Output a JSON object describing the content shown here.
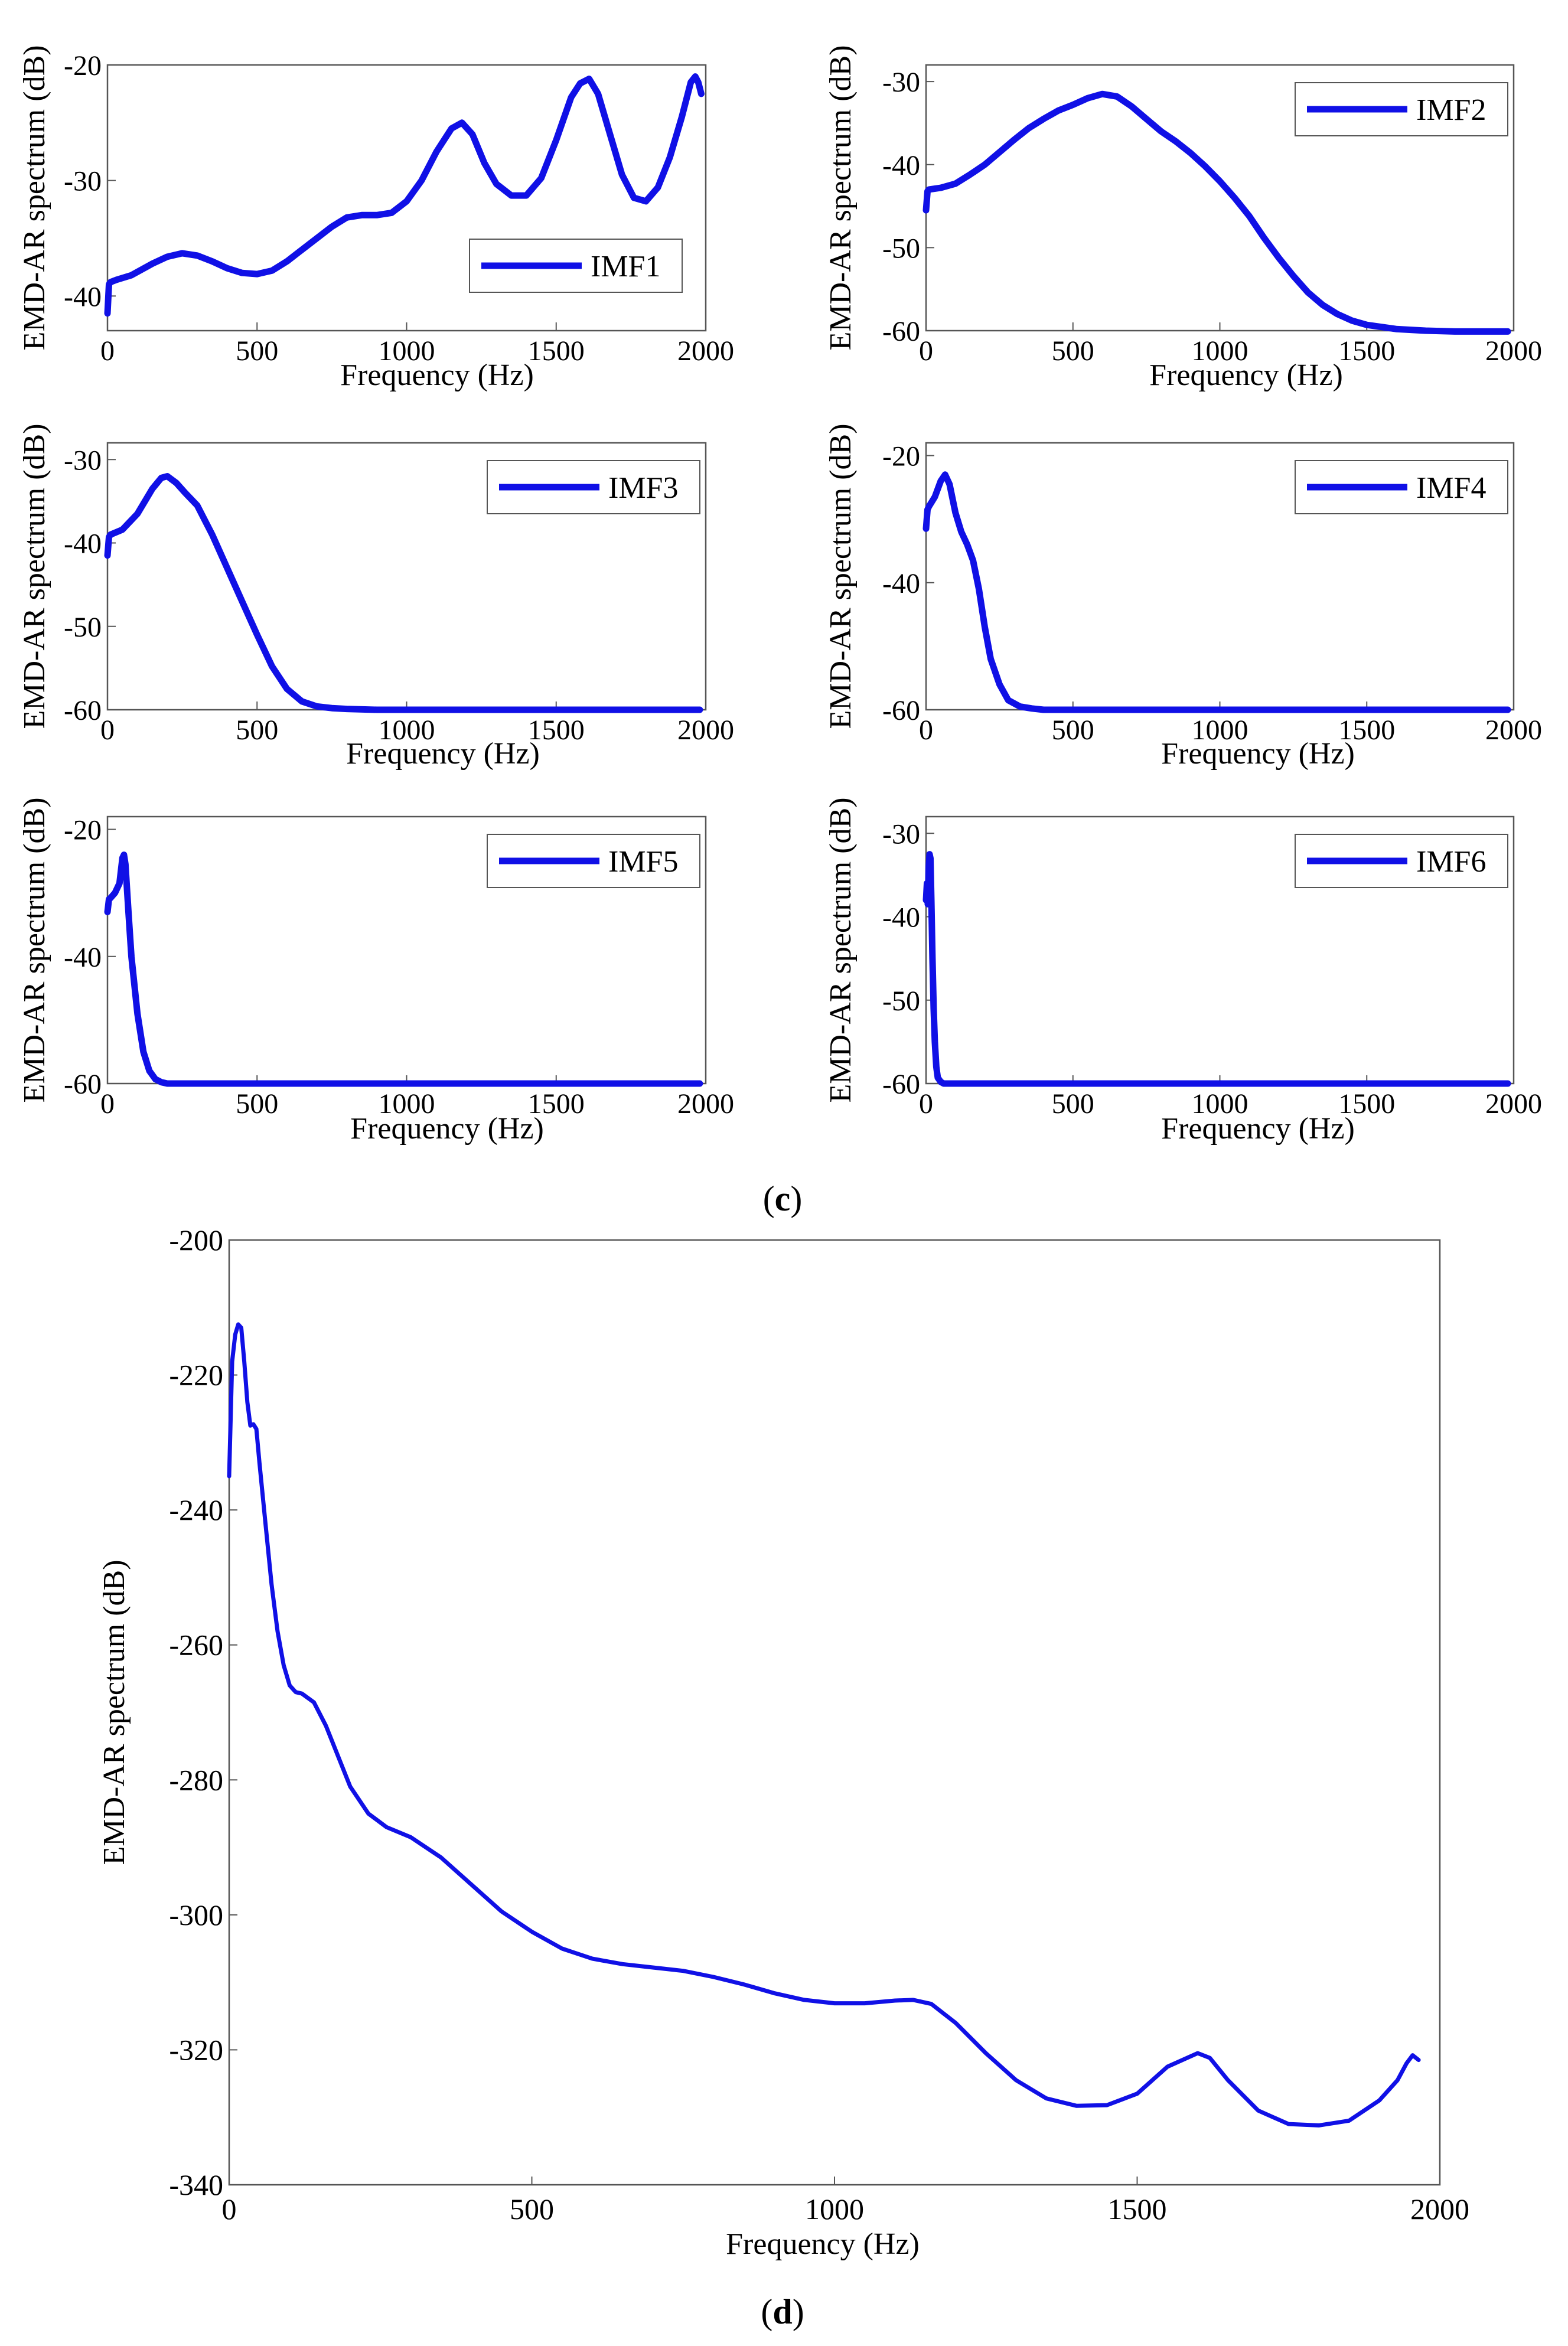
{
  "captions": {
    "c_open": "(",
    "c_letter": "c",
    "c_close": ")",
    "d_open": "(",
    "d_letter": "d",
    "d_close": ")"
  },
  "line_color": "#1010e6",
  "chart_data": [
    {
      "id": "imf1",
      "type": "line",
      "legend": "IMF1",
      "legend_pos": "bottom-right",
      "xlabel": "Frequency (Hz)",
      "ylabel": "EMD-AR spectrum (dB)",
      "xlim": [
        0,
        2000
      ],
      "ylim": [
        -43,
        -20
      ],
      "xticks": [
        0,
        500,
        1000,
        1500,
        2000
      ],
      "yticks": [
        -20,
        -30,
        -40
      ],
      "x": [
        0,
        5,
        10,
        30,
        80,
        150,
        200,
        250,
        300,
        350,
        400,
        450,
        500,
        550,
        600,
        650,
        700,
        750,
        800,
        850,
        900,
        950,
        1000,
        1050,
        1100,
        1150,
        1185,
        1220,
        1260,
        1300,
        1350,
        1400,
        1450,
        1500,
        1550,
        1580,
        1610,
        1640,
        1680,
        1720,
        1760,
        1800,
        1840,
        1880,
        1920,
        1950,
        1965,
        1975,
        1985
      ],
      "values": [
        -41.5,
        -39,
        -38.8,
        -38.6,
        -38.2,
        -37.2,
        -36.6,
        -36.3,
        -36.5,
        -37,
        -37.6,
        -38,
        -38.1,
        -37.8,
        -37,
        -36,
        -35,
        -34,
        -33.2,
        -33,
        -33,
        -32.8,
        -31.8,
        -30,
        -27.5,
        -25.5,
        -25,
        -26,
        -28.5,
        -30.3,
        -31.3,
        -31.3,
        -29.8,
        -26.5,
        -22.8,
        -21.6,
        -21.2,
        -22.5,
        -26,
        -29.5,
        -31.5,
        -31.8,
        -30.6,
        -28,
        -24.5,
        -21.5,
        -21,
        -21.5,
        -22.5
      ]
    },
    {
      "id": "imf2",
      "type": "line",
      "legend": "IMF2",
      "legend_pos": "top-right",
      "xlabel": "Frequency (Hz)",
      "ylabel": "EMD-AR spectrum (dB)",
      "xlim": [
        0,
        2000
      ],
      "ylim": [
        -60,
        -28
      ],
      "xticks": [
        0,
        500,
        1000,
        1500,
        2000
      ],
      "yticks": [
        -30,
        -40,
        -50,
        -60
      ],
      "x": [
        0,
        5,
        10,
        50,
        100,
        150,
        200,
        250,
        300,
        350,
        400,
        450,
        500,
        550,
        600,
        650,
        700,
        750,
        800,
        850,
        900,
        950,
        1000,
        1050,
        1100,
        1150,
        1200,
        1250,
        1300,
        1350,
        1400,
        1450,
        1500,
        1600,
        1700,
        1800,
        1900,
        1980
      ],
      "values": [
        -45.5,
        -43.2,
        -43,
        -42.8,
        -42.3,
        -41.2,
        -40,
        -38.5,
        -37,
        -35.6,
        -34.5,
        -33.5,
        -32.8,
        -32,
        -31.5,
        -31.8,
        -33,
        -34.5,
        -36,
        -37.2,
        -38.6,
        -40.2,
        -42,
        -44,
        -46.2,
        -48.8,
        -51.2,
        -53.4,
        -55.4,
        -56.9,
        -58,
        -58.8,
        -59.3,
        -59.8,
        -60,
        -60.1,
        -60.1,
        -60.1
      ]
    },
    {
      "id": "imf3",
      "type": "line",
      "legend": "IMF3",
      "legend_pos": "top-right",
      "xlabel": "Frequency (Hz)",
      "ylabel": "EMD-AR spectrum (dB)",
      "xlim": [
        0,
        2000
      ],
      "ylim": [
        -60,
        -28
      ],
      "xticks": [
        0,
        500,
        1000,
        1500,
        2000
      ],
      "yticks": [
        -30,
        -40,
        -50,
        -60
      ],
      "x": [
        0,
        5,
        10,
        50,
        100,
        150,
        180,
        200,
        230,
        260,
        300,
        350,
        400,
        450,
        500,
        550,
        600,
        650,
        700,
        750,
        800,
        900,
        1000,
        1200,
        1500,
        1980
      ],
      "values": [
        -41.5,
        -39.3,
        -39,
        -38.4,
        -36.5,
        -33.5,
        -32.2,
        -32,
        -32.8,
        -34,
        -35.5,
        -39,
        -43,
        -47,
        -51,
        -54.8,
        -57.5,
        -59,
        -59.6,
        -59.8,
        -59.9,
        -60,
        -60,
        -60,
        -60,
        -60
      ]
    },
    {
      "id": "imf4",
      "type": "line",
      "legend": "IMF4",
      "legend_pos": "top-right",
      "xlabel": "Frequency (Hz)",
      "ylabel": "EMD-AR spectrum (dB)",
      "xlim": [
        0,
        2000
      ],
      "ylim": [
        -60,
        -18
      ],
      "xticks": [
        0,
        500,
        1000,
        1500,
        2000
      ],
      "yticks": [
        -20,
        -40,
        -60
      ],
      "x": [
        0,
        5,
        10,
        30,
        50,
        65,
        80,
        100,
        120,
        140,
        160,
        180,
        200,
        220,
        250,
        280,
        320,
        360,
        400,
        500,
        1000,
        1500,
        1980
      ],
      "values": [
        -31.5,
        -28.5,
        -28,
        -26.5,
        -24,
        -23,
        -24.5,
        -29,
        -32,
        -34,
        -36.5,
        -41,
        -47,
        -52,
        -56,
        -58.5,
        -59.5,
        -59.8,
        -60,
        -60,
        -60,
        -60,
        -60
      ]
    },
    {
      "id": "imf5",
      "type": "line",
      "legend": "IMF5",
      "legend_pos": "top-right",
      "xlabel": "Frequency (Hz)",
      "ylabel": "EMD-AR spectrum (dB)",
      "xlim": [
        0,
        2000
      ],
      "ylim": [
        -60,
        -18
      ],
      "xticks": [
        0,
        500,
        1000,
        1500,
        2000
      ],
      "yticks": [
        -20,
        -40,
        -60
      ],
      "x": [
        0,
        5,
        10,
        25,
        40,
        50,
        55,
        60,
        70,
        80,
        100,
        120,
        140,
        160,
        180,
        200,
        250,
        300,
        500,
        1000,
        1500,
        1980
      ],
      "values": [
        -33,
        -31,
        -30.8,
        -30,
        -28.5,
        -24.5,
        -24,
        -25.5,
        -33,
        -40,
        -49,
        -55,
        -58,
        -59.3,
        -59.8,
        -60,
        -60,
        -60,
        -60,
        -60,
        -60,
        -60
      ]
    },
    {
      "id": "imf6",
      "type": "line",
      "legend": "IMF6",
      "legend_pos": "top-right",
      "xlabel": "Frequency (Hz)",
      "ylabel": "EMD-AR spectrum (dB)",
      "xlim": [
        0,
        2000
      ],
      "ylim": [
        -60,
        -28
      ],
      "xticks": [
        0,
        500,
        1000,
        1500,
        2000
      ],
      "yticks": [
        -30,
        -40,
        -50,
        -60
      ],
      "x": [
        0,
        3,
        6,
        9,
        12,
        15,
        18,
        22,
        26,
        30,
        35,
        40,
        50,
        60,
        80,
        100,
        200,
        500,
        1000,
        1500,
        1980
      ],
      "values": [
        -38,
        -36,
        -38.5,
        -34,
        -32.5,
        -33,
        -38,
        -45,
        -51,
        -55,
        -58,
        -59.3,
        -59.8,
        -60,
        -60,
        -60,
        -60,
        -60,
        -60,
        -60,
        -60
      ]
    },
    {
      "id": "main",
      "type": "line",
      "legend": "",
      "xlabel": "Frequency (Hz)",
      "ylabel": "EMD-AR spectrum (dB)",
      "xlim": [
        0,
        2000
      ],
      "ylim": [
        -340,
        -200
      ],
      "xticks": [
        0,
        500,
        1000,
        1500,
        2000
      ],
      "yticks": [
        -200,
        -220,
        -240,
        -260,
        -280,
        -300,
        -320,
        -340
      ],
      "x": [
        0,
        5,
        10,
        15,
        20,
        25,
        30,
        35,
        40,
        45,
        50,
        60,
        70,
        80,
        90,
        100,
        110,
        120,
        140,
        160,
        180,
        200,
        230,
        260,
        300,
        350,
        400,
        450,
        500,
        550,
        600,
        650,
        700,
        750,
        800,
        850,
        900,
        950,
        1000,
        1050,
        1100,
        1130,
        1160,
        1200,
        1250,
        1300,
        1350,
        1400,
        1450,
        1500,
        1550,
        1600,
        1620,
        1650,
        1700,
        1750,
        1800,
        1850,
        1900,
        1930,
        1945,
        1955,
        1965
      ],
      "values": [
        -235,
        -218,
        -214,
        -212.5,
        -213,
        -218,
        -224,
        -227.5,
        -227.3,
        -228,
        -233,
        -242,
        -251,
        -258,
        -263,
        -266,
        -267,
        -267.2,
        -268.5,
        -272,
        -276.5,
        -281,
        -285,
        -287,
        -288.5,
        -291.5,
        -295.5,
        -299.5,
        -302.5,
        -305,
        -306.5,
        -307.3,
        -307.8,
        -308.3,
        -309.2,
        -310.3,
        -311.6,
        -312.6,
        -313.1,
        -313.1,
        -312.7,
        -312.6,
        -313.2,
        -316,
        -320.5,
        -324.5,
        -327.2,
        -328.3,
        -328.2,
        -326.5,
        -322.5,
        -320.5,
        -321.2,
        -324.5,
        -329,
        -331,
        -331.2,
        -330.5,
        -327.5,
        -324.5,
        -322,
        -320.8,
        -321.5
      ]
    }
  ]
}
